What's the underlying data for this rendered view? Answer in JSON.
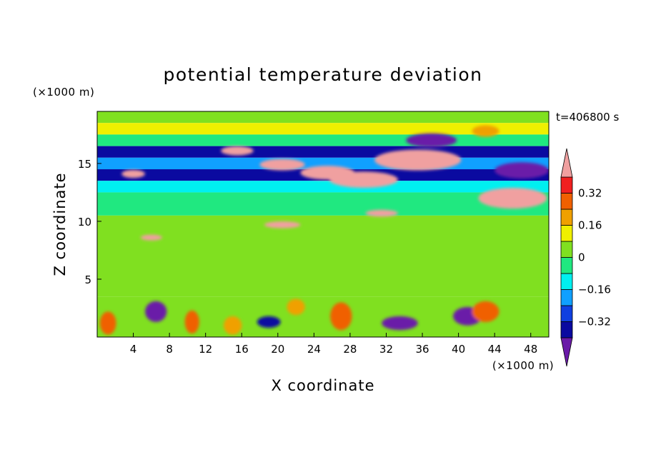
{
  "chart_data": {
    "type": "heatmap",
    "title": "potential temperature deviation",
    "xlabel": "X coordinate",
    "ylabel": "Z coordinate",
    "x_unit": "(×1000 m)",
    "y_unit": "(×1000 m)",
    "time_label": "t=406800 s",
    "xlim": [
      0,
      50
    ],
    "ylim": [
      0,
      19.5
    ],
    "x_ticks": [
      4,
      8,
      12,
      16,
      20,
      24,
      28,
      32,
      36,
      40,
      44,
      48
    ],
    "y_ticks": [
      5,
      10,
      15
    ],
    "x_tick_labels": [
      "4",
      "8",
      "12",
      "16",
      "20",
      "24",
      "28",
      "32",
      "36",
      "40",
      "44",
      "48"
    ],
    "y_tick_labels": [
      "5",
      "10",
      "15"
    ],
    "colorbar": {
      "levels": [
        -0.4,
        -0.32,
        -0.24,
        -0.16,
        -0.08,
        0,
        0.08,
        0.16,
        0.24,
        0.32,
        0.4
      ],
      "colors": [
        "#6a1aa8",
        "#0a0aa0",
        "#1040e0",
        "#10a0ff",
        "#00f0f0",
        "#20e880",
        "#80e020",
        "#f0f000",
        "#f0a000",
        "#f06000",
        "#f02020",
        "#f0a0a0"
      ],
      "labels": [
        "0.32",
        "0.16",
        "0",
        "-0.16",
        "-0.32"
      ],
      "label_values": [
        0.32,
        0.16,
        0,
        -0.16,
        -0.32
      ],
      "label_texts": [
        "0.32",
        "0.16",
        "0",
        "−0.16",
        "−0.32"
      ],
      "extend": "both"
    },
    "background_field": [
      {
        "z_range": [
          18.5,
          19.5
        ],
        "value": 0.02
      },
      {
        "z_range": [
          17.5,
          18.5
        ],
        "value": 0.12
      },
      {
        "z_range": [
          16.5,
          17.5
        ],
        "value": -0.04
      },
      {
        "z_range": [
          15.5,
          16.5
        ],
        "value": -0.36
      },
      {
        "z_range": [
          14.5,
          15.5
        ],
        "value": -0.2
      },
      {
        "z_range": [
          13.5,
          14.5
        ],
        "value": -0.36
      },
      {
        "z_range": [
          12.5,
          13.5
        ],
        "value": -0.14
      },
      {
        "z_range": [
          10.5,
          12.5
        ],
        "value": -0.06
      },
      {
        "z_range": [
          3.5,
          10.5
        ],
        "value": 0.02
      },
      {
        "z_range": [
          0,
          3.5
        ],
        "value": 0.02
      }
    ],
    "features": [
      {
        "x": 35.5,
        "z": 15.3,
        "rx": 4.8,
        "rz": 0.9,
        "value": 0.42
      },
      {
        "x": 29.5,
        "z": 13.6,
        "rx": 3.8,
        "rz": 0.7,
        "value": 0.42
      },
      {
        "x": 25.5,
        "z": 14.2,
        "rx": 3.0,
        "rz": 0.6,
        "value": 0.42
      },
      {
        "x": 20.5,
        "z": 14.9,
        "rx": 2.5,
        "rz": 0.5,
        "value": 0.42
      },
      {
        "x": 15.5,
        "z": 16.1,
        "rx": 1.8,
        "rz": 0.4,
        "value": 0.42
      },
      {
        "x": 46.0,
        "z": 12.0,
        "rx": 3.8,
        "rz": 0.9,
        "value": 0.42
      },
      {
        "x": 31.5,
        "z": 10.7,
        "rx": 1.8,
        "rz": 0.3,
        "value": 0.42
      },
      {
        "x": 20.5,
        "z": 9.7,
        "rx": 2.0,
        "rz": 0.3,
        "value": 0.42
      },
      {
        "x": 4.0,
        "z": 14.1,
        "rx": 1.3,
        "rz": 0.35,
        "value": 0.42
      },
      {
        "x": 37.0,
        "z": 17.0,
        "rx": 2.8,
        "rz": 0.6,
        "value": -0.44
      },
      {
        "x": 47.0,
        "z": 14.4,
        "rx": 3.0,
        "rz": 0.7,
        "value": -0.44
      },
      {
        "x": 6.5,
        "z": 2.2,
        "rx": 1.2,
        "rz": 0.9,
        "value": -0.44
      },
      {
        "x": 33.5,
        "z": 1.2,
        "rx": 2.0,
        "rz": 0.6,
        "value": -0.44
      },
      {
        "x": 41.0,
        "z": 1.8,
        "rx": 1.6,
        "rz": 0.8,
        "value": -0.44
      },
      {
        "x": 19.0,
        "z": 1.3,
        "rx": 1.3,
        "rz": 0.5,
        "value": -0.36
      },
      {
        "x": 1.2,
        "z": 1.2,
        "rx": 0.9,
        "rz": 1.0,
        "value": 0.28
      },
      {
        "x": 10.5,
        "z": 1.3,
        "rx": 0.8,
        "rz": 1.0,
        "value": 0.24
      },
      {
        "x": 27.0,
        "z": 1.8,
        "rx": 1.2,
        "rz": 1.2,
        "value": 0.24
      },
      {
        "x": 43.0,
        "z": 2.2,
        "rx": 1.5,
        "rz": 0.9,
        "value": 0.26
      },
      {
        "x": 22.0,
        "z": 2.6,
        "rx": 1.0,
        "rz": 0.7,
        "value": 0.2
      },
      {
        "x": 15.0,
        "z": 1.0,
        "rx": 1.0,
        "rz": 0.8,
        "value": 0.18
      },
      {
        "x": 6.0,
        "z": 8.6,
        "rx": 1.2,
        "rz": 0.25,
        "value": 0.42
      },
      {
        "x": 43.0,
        "z": 17.8,
        "rx": 1.5,
        "rz": 0.5,
        "value": 0.16
      }
    ]
  }
}
